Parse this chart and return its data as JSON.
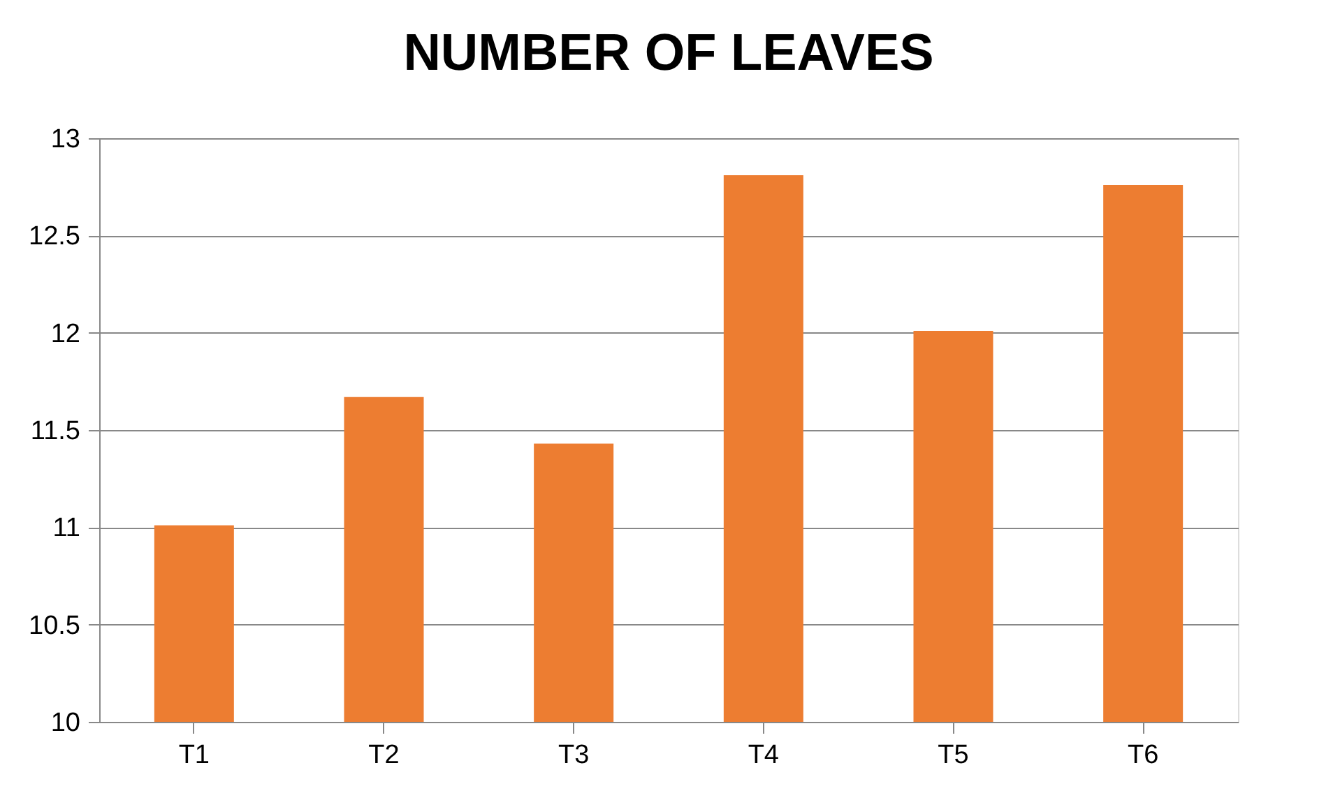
{
  "chart_data": {
    "type": "bar",
    "title": "NUMBER OF LEAVES",
    "categories": [
      "T1",
      "T2",
      "T3",
      "T4",
      "T5",
      "T6"
    ],
    "values": [
      11.01,
      11.67,
      11.43,
      12.81,
      12.01,
      12.76
    ],
    "color": "#ed7d31",
    "ylim": [
      10,
      13
    ],
    "yticks": [
      10,
      10.5,
      11,
      11.5,
      12,
      12.5,
      13
    ],
    "grid": "y"
  }
}
